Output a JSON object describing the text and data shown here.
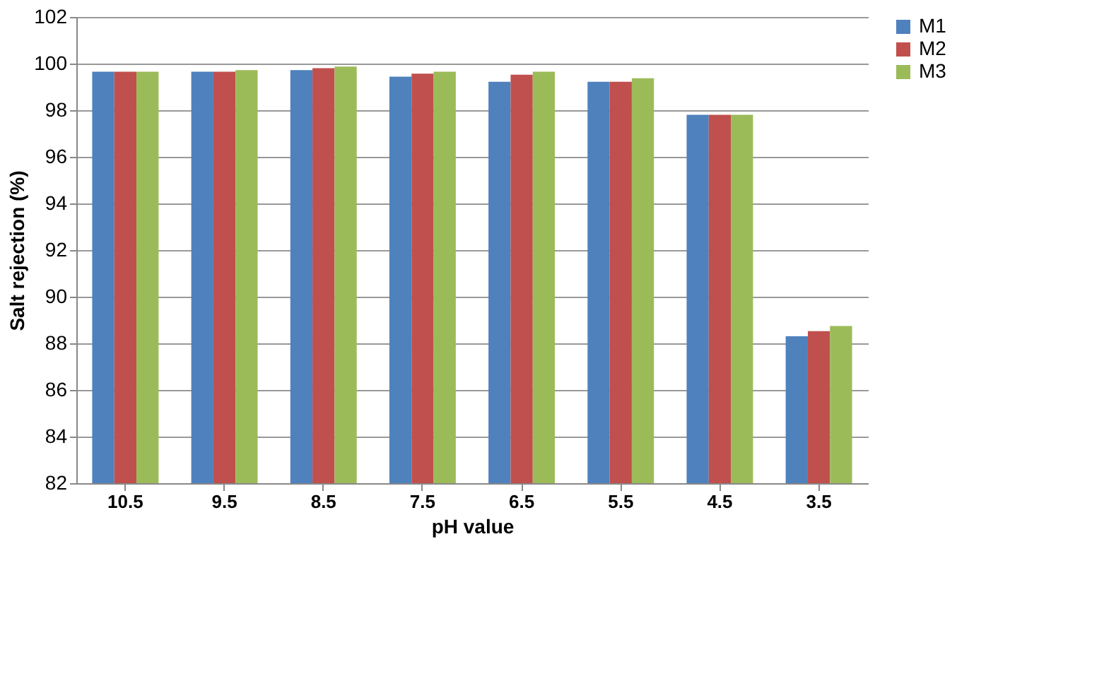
{
  "chart_data": {
    "type": "bar",
    "xlabel": "pH value",
    "ylabel": "Salt rejection (%)",
    "categories": [
      "10.5",
      "9.5",
      "8.5",
      "7.5",
      "6.5",
      "5.5",
      "4.5",
      "3.5"
    ],
    "series": [
      {
        "name": "M1",
        "color": "#4f81bd",
        "values": [
          99.65,
          99.65,
          99.72,
          99.44,
          99.22,
          99.22,
          97.8,
          88.3
        ]
      },
      {
        "name": "M2",
        "color": "#c0504d",
        "values": [
          99.65,
          99.65,
          99.8,
          99.57,
          99.52,
          99.22,
          97.8,
          88.52
        ]
      },
      {
        "name": "M3",
        "color": "#9bbb59",
        "values": [
          99.65,
          99.72,
          99.87,
          99.65,
          99.65,
          99.37,
          97.8,
          88.74
        ]
      }
    ],
    "ylim": [
      82,
      102
    ],
    "yticks": [
      82,
      84,
      86,
      88,
      90,
      92,
      94,
      96,
      98,
      100,
      102
    ],
    "grid": "y",
    "legend": "right"
  }
}
